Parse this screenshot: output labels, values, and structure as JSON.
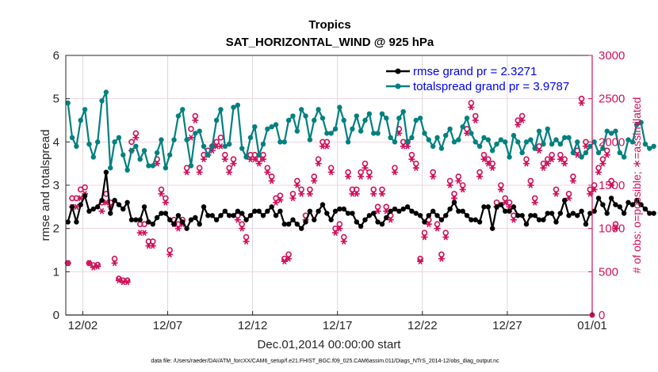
{
  "chart_data": {
    "type": "line",
    "title": "Tropics",
    "subtitle": "SAT_HORIZONTAL_WIND @ 925 hPa",
    "xlabel": "Dec.01,2014 00:00:00 start",
    "ylabel": "rmse and totalspread",
    "y2label": "# of obs: o=possible; ∗=assimilated",
    "footnote": "data file: /Users/raeder/DAI/ATM_forcXX/CAM6_setup/f.e21.FHIST_BGC.f09_025.CAM6assim.011/Diags_NTrS_2014-12/obs_diag_output.nc",
    "x_unit": "days since Dec.01,2014 00:00",
    "x_step_days": 0.25,
    "xlim": [
      0,
      31
    ],
    "ylim": [
      0,
      6
    ],
    "y2lim": [
      0,
      3000
    ],
    "grid": true,
    "legend_position": "top-right",
    "xticks": [
      {
        "value": 1,
        "label": "12/02"
      },
      {
        "value": 6,
        "label": "12/07"
      },
      {
        "value": 11,
        "label": "12/12"
      },
      {
        "value": 16,
        "label": "12/17"
      },
      {
        "value": 21,
        "label": "12/22"
      },
      {
        "value": 26,
        "label": "12/27"
      },
      {
        "value": 31,
        "label": "01/01"
      }
    ],
    "yticks": [
      "0",
      "1",
      "2",
      "3",
      "4",
      "5",
      "6"
    ],
    "y2ticks": [
      "0",
      "500",
      "1000",
      "1500",
      "2000",
      "2500",
      "3000"
    ],
    "colors": {
      "rmse": "#000000",
      "totalspread": "#008080",
      "obs": "#d1105a",
      "legend_text": "#0000ff",
      "grid": "#f2d3de",
      "xgrid": "#d9d9d9"
    },
    "series": [
      {
        "name": "rmse",
        "legend": "rmse grand pr = 2.3271",
        "axis": "left",
        "values": [
          2.15,
          2.5,
          2.15,
          2.55,
          2.75,
          2.4,
          2.45,
          2.5,
          2.65,
          3.3,
          2.35,
          2.65,
          2.55,
          2.45,
          2.6,
          2.2,
          2.2,
          2.2,
          2.5,
          2.15,
          2.1,
          2.25,
          2.35,
          2.35,
          2.2,
          2.1,
          2.3,
          2.15,
          2.0,
          2.2,
          2.25,
          2.1,
          2.5,
          2.3,
          2.3,
          2.2,
          2.3,
          2.4,
          2.3,
          2.3,
          2.4,
          2.35,
          2.2,
          2.3,
          2.4,
          2.4,
          2.3,
          2.4,
          2.5,
          2.3,
          2.4,
          2.1,
          2.1,
          2.2,
          2.1,
          2.0,
          2.15,
          2.4,
          2.2,
          2.4,
          2.55,
          2.35,
          2.2,
          2.4,
          2.45,
          2.45,
          2.35,
          2.35,
          2.15,
          2.05,
          2.2,
          2.3,
          2.35,
          2.15,
          2.1,
          2.25,
          2.4,
          2.45,
          2.4,
          2.45,
          2.5,
          2.4,
          2.35,
          2.3,
          2.15,
          2.3,
          2.4,
          2.3,
          2.2,
          2.3,
          2.45,
          2.6,
          2.4,
          2.4,
          2.3,
          2.2,
          2.2,
          2.15,
          2.5,
          2.5,
          2.0,
          2.5,
          2.55,
          2.4,
          2.4,
          2.5,
          2.3,
          2.3,
          2.1,
          2.3,
          2.3,
          2.2,
          2.2,
          2.35,
          2.35,
          2.15,
          2.35,
          2.65,
          2.3,
          2.35,
          2.3,
          2.4,
          2.1,
          2.35,
          2.4,
          2.7,
          2.55,
          2.35,
          2.7,
          2.55,
          2.5,
          2.35,
          2.6,
          2.55,
          2.65,
          2.55,
          2.45,
          2.35,
          2.35
        ]
      },
      {
        "name": "totalspread",
        "legend": "totalspread grand pr = 3.9787",
        "axis": "left",
        "values": [
          4.9,
          4.1,
          3.9,
          4.5,
          4.75,
          3.95,
          3.65,
          4.0,
          4.95,
          5.15,
          3.4,
          4.0,
          4.1,
          3.7,
          3.35,
          3.8,
          3.9,
          3.6,
          3.8,
          3.45,
          3.45,
          3.75,
          4.05,
          3.4,
          3.7,
          4.05,
          4.6,
          4.75,
          4.05,
          3.45,
          4.2,
          4.25,
          3.9,
          3.7,
          3.9,
          4.5,
          4.75,
          3.9,
          3.95,
          4.8,
          4.85,
          3.85,
          3.65,
          4.1,
          4.35,
          3.7,
          3.95,
          4.3,
          4.35,
          4.4,
          4.0,
          4.0,
          4.5,
          4.6,
          4.25,
          4.75,
          4.6,
          4.05,
          4.5,
          4.75,
          4.55,
          4.2,
          4.2,
          4.3,
          4.8,
          4.5,
          4.0,
          4.3,
          4.6,
          4.25,
          4.5,
          4.65,
          4.2,
          4.2,
          4.65,
          4.55,
          4.1,
          4.0,
          4.55,
          4.7,
          4.0,
          4.1,
          4.5,
          4.55,
          4.2,
          4.05,
          3.9,
          4.1,
          3.85,
          4.15,
          4.3,
          4.0,
          4.05,
          4.35,
          4.55,
          4.2,
          4.0,
          3.9,
          4.1,
          4.05,
          3.8,
          3.95,
          4.05,
          4.0,
          3.65,
          4.15,
          4.0,
          3.75,
          4.0,
          4.05,
          3.85,
          4.25,
          3.95,
          4.3,
          3.95,
          4.05,
          3.95,
          4.1,
          4.1,
          3.75,
          4.0,
          3.65,
          3.75,
          3.9,
          4.0,
          3.75,
          3.85,
          4.25,
          4.2,
          4.25,
          3.75,
          3.65,
          4.05,
          4.0,
          4.4,
          4.45,
          3.95,
          3.85,
          3.9
        ]
      },
      {
        "name": "obs possible",
        "axis": "right",
        "marker": "o",
        "values": [
          600,
          1350,
          1350,
          1450,
          1475,
          600,
          575,
          580,
          1300,
          1400,
          1300,
          650,
          420,
          400,
          400,
          2000,
          2100,
          1050,
          1050,
          850,
          850,
          1800,
          1450,
          1350,
          750,
          1100,
          1050,
          1100,
          1700,
          2150,
          2300,
          1700,
          1850,
          1900,
          1950,
          2000,
          2050,
          1850,
          1700,
          1800,
          1150,
          1050,
          900,
          1850,
          1850,
          1800,
          1850,
          1700,
          1600,
          1350,
          1380,
          650,
          700,
          1400,
          1550,
          1450,
          1150,
          1450,
          1600,
          1800,
          2000,
          2000,
          1700,
          1000,
          1050,
          900,
          1650,
          1450,
          1450,
          1650,
          1750,
          1650,
          1450,
          1250,
          1450,
          1250,
          1150,
          1700,
          2150,
          2000,
          2000,
          1850,
          1750,
          650,
          950,
          1100,
          1650,
          1050,
          700,
          950,
          1550,
          1400,
          1600,
          1500,
          2150,
          2450,
          2300,
          1650,
          1850,
          1800,
          1750,
          1300,
          1500,
          1350,
          1300,
          1150,
          2250,
          2300,
          1800,
          1550,
          1350,
          1950,
          1750,
          1800,
          1850,
          1450,
          1850,
          1800,
          1400,
          1600,
          1900,
          2500,
          2000,
          1450,
          1500,
          1700,
          1800,
          1900,
          1550,
          1050
        ]
      },
      {
        "name": "obs assimilated",
        "axis": "right",
        "marker": "*",
        "values": [
          600,
          1250,
          1250,
          1350,
          1400,
          600,
          550,
          560,
          1200,
          1300,
          1250,
          600,
          400,
          380,
          380,
          1900,
          2050,
          950,
          950,
          800,
          800,
          1750,
          1400,
          1300,
          700,
          1050,
          1000,
          1050,
          1650,
          2050,
          2250,
          1650,
          1800,
          1850,
          1900,
          1950,
          1950,
          1800,
          1650,
          1750,
          1100,
          1000,
          850,
          1800,
          1800,
          1750,
          1800,
          1650,
          1550,
          1300,
          1330,
          620,
          650,
          1350,
          1500,
          1400,
          1100,
          1400,
          1550,
          1750,
          1950,
          1950,
          1650,
          950,
          1000,
          850,
          1600,
          1400,
          1400,
          1600,
          1700,
          1600,
          1400,
          1200,
          1400,
          1200,
          1100,
          1650,
          2100,
          1950,
          1950,
          1800,
          1700,
          620,
          900,
          1050,
          1600,
          1000,
          650,
          900,
          1500,
          1350,
          1550,
          1450,
          2100,
          2400,
          2250,
          1600,
          1800,
          1750,
          1700,
          1250,
          1450,
          1300,
          1250,
          1100,
          2200,
          2250,
          1750,
          1500,
          1300,
          1900,
          1700,
          1750,
          1800,
          1400,
          1800,
          1750,
          1350,
          1550,
          1850,
          2450,
          1950,
          1400,
          1450,
          1650,
          1750,
          1850,
          1500,
          1000
        ]
      }
    ]
  }
}
